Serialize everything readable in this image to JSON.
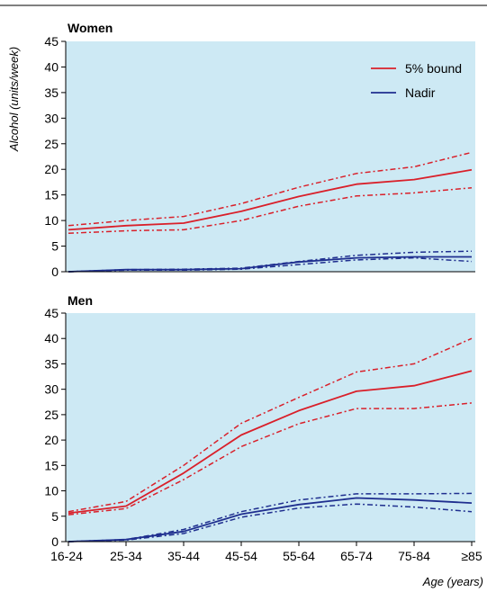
{
  "colors": {
    "panel_bg": "#cde9f4",
    "bound": "#d9202a",
    "nadir": "#1f2f8f",
    "axis": "#000000"
  },
  "chart_data": [
    {
      "type": "line",
      "title": "Women",
      "ylabel": "Alcohol (units/week)",
      "xlabel": "",
      "categories": [
        "16-24",
        "25-34",
        "35-44",
        "45-54",
        "55-64",
        "65-74",
        "75-84",
        "≥85"
      ],
      "ylim": [
        0,
        45
      ],
      "yticks": [
        0,
        5,
        10,
        15,
        20,
        25,
        30,
        35,
        40,
        45
      ],
      "grid": false,
      "legend": "top-right",
      "series": [
        {
          "name": "5% bound",
          "color": "#d9202a",
          "style": "solid",
          "values": [
            8.2,
            9.0,
            9.5,
            11.8,
            14.7,
            17.1,
            18.0,
            19.9
          ]
        },
        {
          "name": "",
          "color": "#d9202a",
          "style": "dashed",
          "values": [
            9.0,
            10.0,
            10.8,
            13.3,
            16.5,
            19.2,
            20.5,
            23.3
          ]
        },
        {
          "name": "",
          "color": "#d9202a",
          "style": "dashed",
          "values": [
            7.5,
            8.0,
            8.2,
            10.0,
            12.8,
            14.8,
            15.4,
            16.4
          ]
        },
        {
          "name": "Nadir",
          "color": "#1f2f8f",
          "style": "solid",
          "values": [
            0.0,
            0.4,
            0.4,
            0.6,
            1.9,
            2.7,
            2.9,
            2.9
          ]
        },
        {
          "name": "",
          "color": "#1f2f8f",
          "style": "dashed",
          "values": [
            0.0,
            0.4,
            0.5,
            0.7,
            2.0,
            3.2,
            3.8,
            4.0
          ]
        },
        {
          "name": "",
          "color": "#1f2f8f",
          "style": "dashed",
          "values": [
            0.0,
            0.3,
            0.3,
            0.5,
            1.4,
            2.3,
            2.7,
            2.0
          ]
        }
      ]
    },
    {
      "type": "line",
      "title": "Men",
      "ylabel": "",
      "xlabel": "Age (years)",
      "categories": [
        "16-24",
        "25-34",
        "35-44",
        "45-54",
        "55-64",
        "65-74",
        "75-84",
        "≥85"
      ],
      "ylim": [
        0,
        45
      ],
      "yticks": [
        0,
        5,
        10,
        15,
        20,
        25,
        30,
        35,
        40,
        45
      ],
      "grid": false,
      "series": [
        {
          "name": "5% bound",
          "color": "#d9202a",
          "style": "solid",
          "values": [
            5.6,
            7.0,
            13.5,
            21.0,
            25.8,
            29.6,
            30.7,
            33.6
          ]
        },
        {
          "name": "",
          "color": "#d9202a",
          "style": "dashed",
          "values": [
            5.9,
            7.9,
            15.0,
            23.3,
            28.4,
            33.4,
            35.0,
            40.0
          ]
        },
        {
          "name": "",
          "color": "#d9202a",
          "style": "dashed",
          "values": [
            5.3,
            6.5,
            12.2,
            18.7,
            23.2,
            26.2,
            26.2,
            27.3
          ]
        },
        {
          "name": "Nadir",
          "color": "#1f2f8f",
          "style": "solid",
          "values": [
            0.0,
            0.4,
            2.0,
            5.4,
            7.3,
            8.6,
            8.2,
            7.6
          ]
        },
        {
          "name": "",
          "color": "#1f2f8f",
          "style": "dashed",
          "values": [
            0.0,
            0.4,
            2.4,
            5.9,
            8.2,
            9.4,
            9.4,
            9.5
          ]
        },
        {
          "name": "",
          "color": "#1f2f8f",
          "style": "dashed",
          "values": [
            0.0,
            0.3,
            1.6,
            4.8,
            6.6,
            7.4,
            6.8,
            5.9
          ]
        }
      ]
    }
  ]
}
